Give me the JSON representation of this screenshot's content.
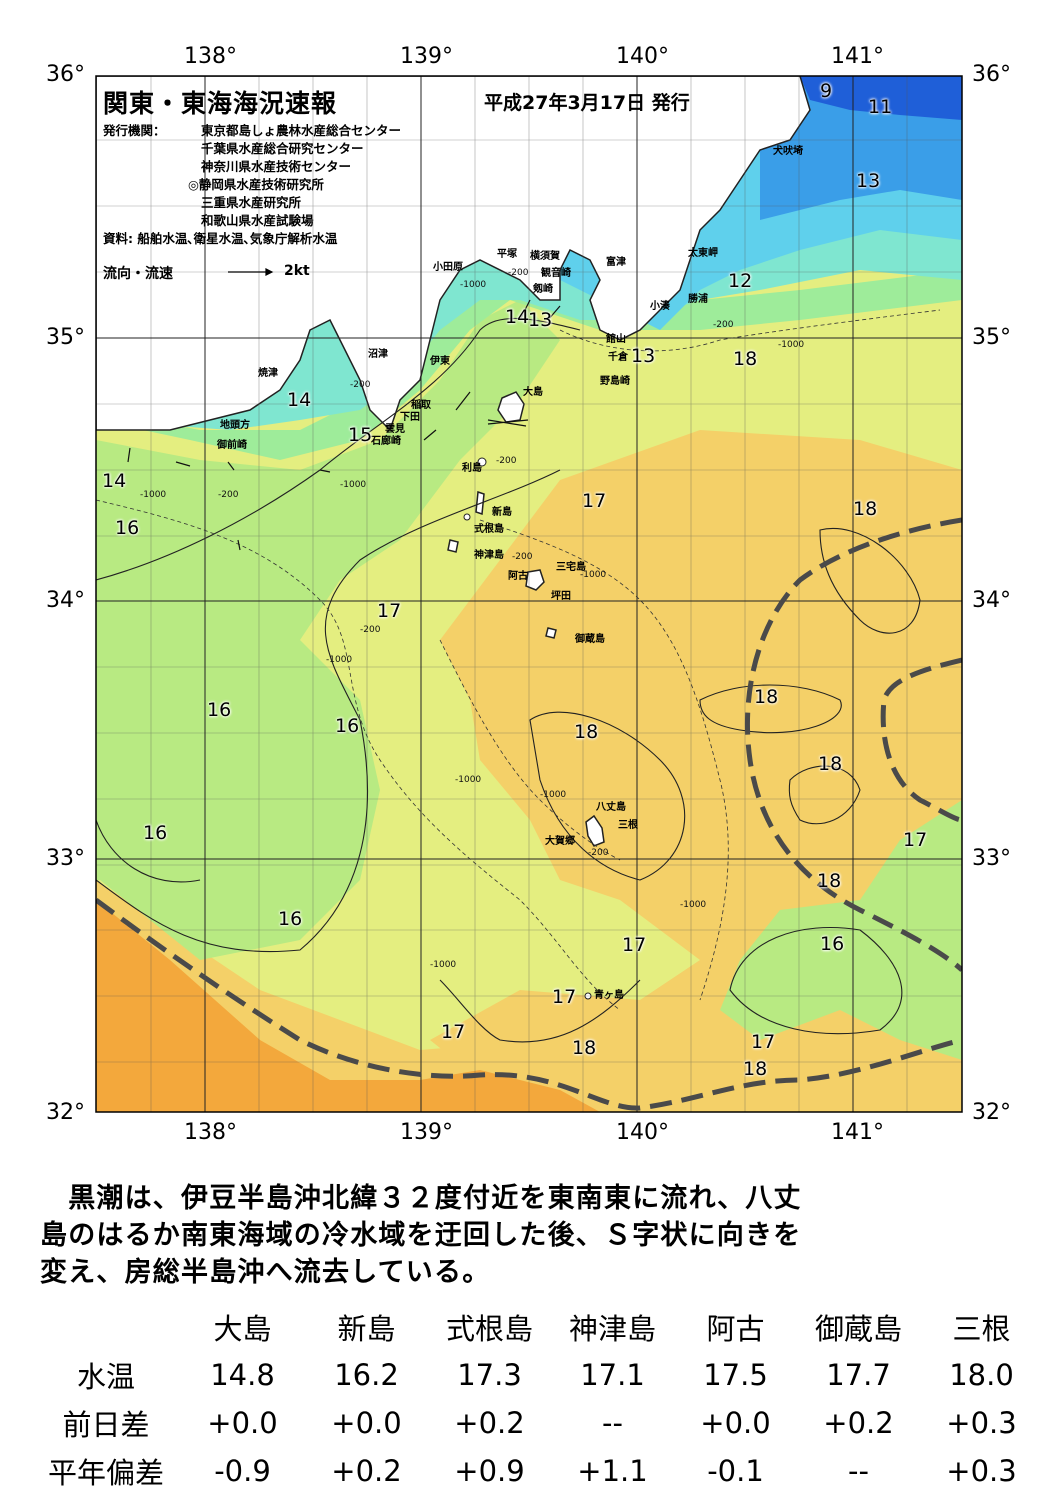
{
  "header": {
    "title": "関東・東海海況速報",
    "date": "平成27年3月17日 発行",
    "publisher_label": "発行機関：",
    "publishers": [
      "東京都島しょ農林水産総合センター",
      "千葉県水産総合研究センター",
      "神奈川県水産技術センター"
    ],
    "lead_publisher": "◎静岡県水産技術研究所",
    "publishers_more": [
      "三重県水産研究所",
      "和歌山県水産試験場"
    ],
    "sources": "資料: 船舶水温､衛星水温､気象庁解析水温",
    "flow_label": "流向・流速",
    "flow_scale": "2kt"
  },
  "axes": {
    "lon_labels": [
      "138°",
      "139°",
      "140°",
      "141°"
    ],
    "lat_labels": [
      "36°",
      "35°",
      "34°",
      "33°",
      "32°"
    ]
  },
  "map_data": {
    "extent": {
      "lon_min": 137.5,
      "lon_max": 141.5,
      "lat_min": 32.0,
      "lat_max": 36.0
    },
    "colors": {
      "land": "#ffffff",
      "coast": "#222222",
      "kuroshio_axis": "#4a4a4a",
      "t9": "#1f5fd8",
      "t11": "#3a9ee8",
      "t13": "#5fd0ec",
      "t14": "#7fe6d0",
      "t15": "#9eec9a",
      "t16": "#b8ea82",
      "t17": "#e4ee80",
      "t18": "#f4d068",
      "t19": "#f3a83c"
    },
    "places": [
      "犬吠埼",
      "太東岬",
      "勝浦",
      "小湊",
      "富津",
      "館山",
      "千倉",
      "野島崎",
      "横須賀",
      "観音崎",
      "剱崎",
      "平塚",
      "小田原",
      "沼津",
      "伊東",
      "稲取",
      "下田",
      "雲見",
      "石廊崎",
      "焼津",
      "地頭方",
      "御前崎",
      "大島",
      "利島",
      "新島",
      "式根島",
      "神津島",
      "三宅島",
      "阿古",
      "坪田",
      "御蔵島",
      "八丈島",
      "三根",
      "大賀郷",
      "青ヶ島"
    ],
    "temperature_labels": [
      "9",
      "11",
      "13",
      "12",
      "13",
      "14",
      "13",
      "14",
      "15",
      "14",
      "16",
      "16",
      "16",
      "16",
      "16",
      "16",
      "17",
      "17",
      "17",
      "17",
      "17",
      "17",
      "17",
      "18",
      "18",
      "18",
      "18",
      "18",
      "18",
      "18",
      "18"
    ],
    "depth_labels": [
      "-200",
      "-200",
      "-200",
      "-200",
      "-200",
      "-200",
      "-200",
      "-200",
      "-1000",
      "-1000",
      "-1000",
      "-1000",
      "-1000",
      "-1000",
      "-1000",
      "-1000",
      "-1000",
      "-1000"
    ]
  },
  "summary": "　黒潮は、伊豆半島沖北緯３２度付近を東南東に流れ、八丈\n島のはるか南東海域の冷水域を迂回した後、Ｓ字状に向きを\n変え、房総半島沖へ流去している。",
  "table": {
    "columns": [
      "大島",
      "新島",
      "式根島",
      "神津島",
      "阿古",
      "御蔵島",
      "三根"
    ],
    "rows": [
      {
        "label": "水温",
        "values": [
          "14.8",
          "16.2",
          "17.3",
          "17.1",
          "17.5",
          "17.7",
          "18.0"
        ]
      },
      {
        "label": "前日差",
        "values": [
          "+0.0",
          "+0.0",
          "+0.2",
          "--",
          "+0.0",
          "+0.2",
          "+0.3"
        ]
      },
      {
        "label": "平年偏差",
        "values": [
          "-0.9",
          "+0.2",
          "+0.9",
          "+1.1",
          "-0.1",
          "--",
          "+0.3"
        ]
      }
    ]
  }
}
